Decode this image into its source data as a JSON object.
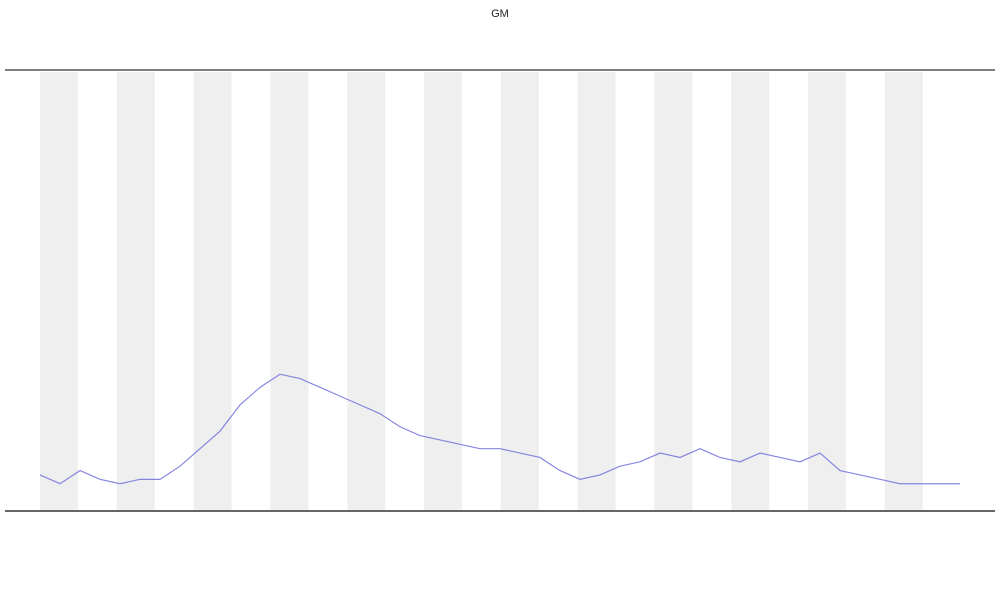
{
  "chart_data": {
    "type": "line",
    "title": "GM",
    "x": [
      0,
      1,
      2,
      3,
      4,
      5,
      6,
      7,
      8,
      9,
      10,
      11,
      12,
      13,
      14,
      15,
      16,
      17,
      18,
      19,
      20,
      21,
      22,
      23,
      24,
      25,
      26,
      27,
      28,
      29,
      30,
      31,
      32,
      33,
      34,
      35,
      36,
      37,
      38,
      39,
      40,
      41,
      42,
      43,
      44,
      45,
      46
    ],
    "xlim": [
      0,
      46
    ],
    "ylim": [
      0,
      100
    ],
    "series": [
      {
        "color": "#6a6adc",
        "values": [
          8,
          6,
          9,
          7,
          6,
          7,
          7,
          10,
          14,
          18,
          24,
          28,
          31,
          30,
          28,
          26,
          24,
          22,
          19,
          17,
          16,
          15,
          14,
          14,
          13,
          12,
          9,
          7,
          8,
          10,
          11,
          13,
          12,
          14,
          12,
          11,
          13,
          12,
          11,
          13,
          9,
          8,
          7,
          6,
          6,
          6,
          6
        ]
      }
    ]
  }
}
